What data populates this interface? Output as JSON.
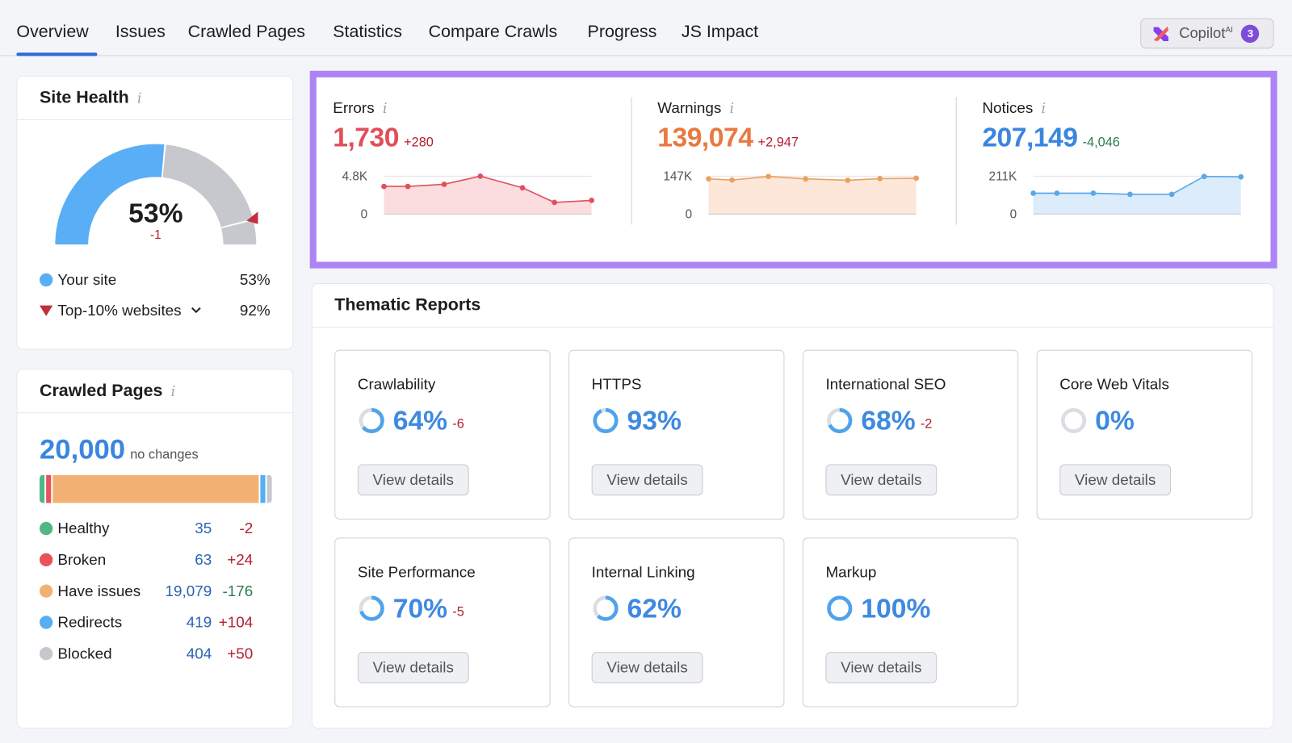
{
  "tabs": [
    {
      "label": "Overview",
      "active": true
    },
    {
      "label": "Issues"
    },
    {
      "label": "Crawled Pages"
    },
    {
      "label": "Statistics"
    },
    {
      "label": "Compare Crawls"
    },
    {
      "label": "Progress"
    },
    {
      "label": "JS Impact"
    }
  ],
  "copilot": {
    "label": "Copilot",
    "sup": "AI",
    "badge": "3"
  },
  "site_health": {
    "title": "Site Health",
    "value": "53%",
    "delta": "-1",
    "score": 53,
    "top10_score": 92,
    "legend": [
      {
        "label": "Your site",
        "value": "53%",
        "color": "#5aaef5"
      },
      {
        "label": "Top-10% websites",
        "value": "92%",
        "color": "#c0303c"
      }
    ],
    "colors": {
      "filled": "#5aaef5",
      "rest": "#c6c8ce",
      "marker": "#c0303c"
    }
  },
  "crawled_pages": {
    "title": "Crawled Pages",
    "total": "20,000",
    "total_note": "no changes",
    "rows": [
      {
        "label": "Healthy",
        "count": "35",
        "delta": "-2",
        "n": 35,
        "color": "#53b785",
        "delta_color": "#b32030"
      },
      {
        "label": "Broken",
        "count": "63",
        "delta": "+24",
        "n": 63,
        "color": "#e8525a",
        "delta_color": "#b32030"
      },
      {
        "label": "Have issues",
        "count": "19,079",
        "delta": "-176",
        "n": 19079,
        "color": "#f2b173",
        "delta_color": "#2f7a50"
      },
      {
        "label": "Redirects",
        "count": "419",
        "delta": "+104",
        "n": 419,
        "color": "#56aef3",
        "delta_color": "#b32030"
      },
      {
        "label": "Blocked",
        "count": "404",
        "delta": "+50",
        "n": 404,
        "color": "#c6c8ce",
        "delta_color": "#b32030"
      }
    ]
  },
  "issues": [
    {
      "label": "Errors",
      "value": "1,730",
      "delta": "+280",
      "color": "#e0505a",
      "fill": "#fbdde0",
      "delta_color": "#b32030",
      "ymax_label": "4.8K",
      "ymin_label": "0",
      "ymax": 4800,
      "values": [
        3500,
        3500,
        3770,
        4800,
        3330,
        1470,
        1730
      ]
    },
    {
      "label": "Warnings",
      "value": "139,074",
      "delta": "+2,947",
      "color": "#e87a3f",
      "line": "#e9a060",
      "fill": "#fce7d8",
      "delta_color": "#b32030",
      "ymax_label": "147K",
      "ymin_label": "0",
      "ymax": 147000,
      "values": [
        136500,
        132000,
        146000,
        136500,
        131000,
        137500,
        139074
      ]
    },
    {
      "label": "Notices",
      "value": "207,149",
      "delta": "-4,046",
      "color": "#3a86e0",
      "line": "#5ba8e8",
      "fill": "#dcecfb",
      "delta_color": "#2f7a50",
      "ymax_label": "211K",
      "ymin_label": "0",
      "ymax": 211000,
      "values": [
        116000,
        116000,
        116000,
        110000,
        110000,
        209500,
        207149
      ]
    }
  ],
  "thematic": {
    "title": "Thematic Reports",
    "button_label": "View details",
    "reports": [
      {
        "name": "Crawlability",
        "value": "64%",
        "pct": 64,
        "delta": "-6"
      },
      {
        "name": "HTTPS",
        "value": "93%",
        "pct": 93,
        "delta": ""
      },
      {
        "name": "International SEO",
        "value": "68%",
        "pct": 68,
        "delta": "-2"
      },
      {
        "name": "Core Web Vitals",
        "value": "0%",
        "pct": 0,
        "delta": ""
      },
      {
        "name": "Site Performance",
        "value": "70%",
        "pct": 70,
        "delta": "-5"
      },
      {
        "name": "Internal Linking",
        "value": "62%",
        "pct": 62,
        "delta": ""
      },
      {
        "name": "Markup",
        "value": "100%",
        "pct": 100,
        "delta": ""
      }
    ]
  }
}
